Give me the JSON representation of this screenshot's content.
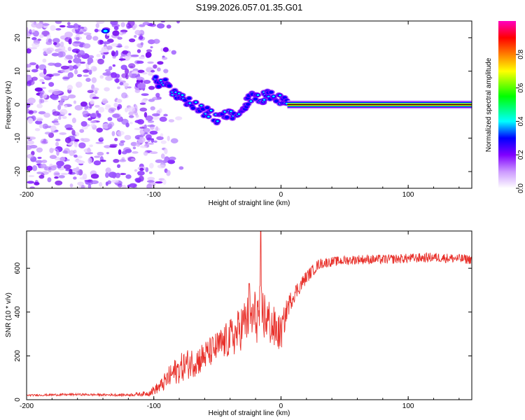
{
  "title": "S199.2026.057.01.35.G01",
  "chart_data": [
    {
      "type": "heatmap",
      "xlabel": "Height of straight line (km)",
      "ylabel": "Frequency (Hz)",
      "xlim": [
        -200,
        150
      ],
      "ylim": [
        -25,
        25
      ],
      "x_ticks": [
        -200,
        -100,
        0,
        100
      ],
      "y_ticks": [
        -20,
        -10,
        0,
        10,
        20
      ],
      "colorbar": {
        "label": "Normalized spectral amplitude",
        "range": [
          0,
          1
        ],
        "ticks": [
          "0.0",
          "0.2",
          "0.4",
          "0.6",
          "0.8"
        ],
        "colors": [
          "#ffffff",
          "#cc99ff",
          "#8000ff",
          "#0000ff",
          "#00ffff",
          "#00ff00",
          "#ffff00",
          "#ff8000",
          "#ff0000",
          "#ff00c0"
        ]
      },
      "features": {
        "noise_region_x": [
          -200,
          -100
        ],
        "scatter_track": [
          [
            -100,
            7
          ],
          [
            -90,
            6
          ],
          [
            -80,
            2
          ],
          [
            -70,
            0
          ],
          [
            -60,
            -2
          ],
          [
            -50,
            -4
          ],
          [
            -40,
            -3
          ],
          [
            -30,
            -2
          ],
          [
            -25,
            2
          ],
          [
            -15,
            2
          ],
          [
            -10,
            3
          ],
          [
            0,
            1.5
          ],
          [
            5,
            0.5
          ]
        ],
        "carrier_line": {
          "x_start": 5,
          "x_end": 150,
          "frequency": 0
        }
      }
    },
    {
      "type": "line",
      "xlabel": "Height of straight line (km)",
      "ylabel": "SNR (10 * v/v)",
      "xlim": [
        -200,
        150
      ],
      "ylim": [
        0,
        770
      ],
      "x_ticks": [
        -200,
        -100,
        0,
        100
      ],
      "y_ticks": [
        0,
        200,
        400,
        600
      ],
      "series": [
        {
          "name": "SNR",
          "color": "#e8302a",
          "x": [
            -200,
            -180,
            -160,
            -140,
            -120,
            -105,
            -95,
            -85,
            -75,
            -65,
            -55,
            -45,
            -35,
            -28,
            -20,
            -15,
            -10,
            -5,
            0,
            5,
            10,
            20,
            30,
            40,
            60,
            80,
            100,
            120,
            150
          ],
          "y": [
            20,
            22,
            24,
            22,
            22,
            28,
            60,
            120,
            160,
            180,
            220,
            260,
            300,
            360,
            380,
            400,
            360,
            320,
            300,
            420,
            480,
            560,
            620,
            630,
            640,
            640,
            645,
            650,
            640
          ],
          "noise": [
            4,
            5,
            5,
            5,
            6,
            12,
            30,
            60,
            70,
            70,
            70,
            80,
            100,
            110,
            130,
            130,
            110,
            100,
            80,
            50,
            40,
            30,
            25,
            22,
            22,
            22,
            22,
            22,
            22
          ],
          "spikes": [
            {
              "x": -16,
              "y": 770
            },
            {
              "x": -25,
              "y": 530
            }
          ]
        }
      ]
    }
  ]
}
